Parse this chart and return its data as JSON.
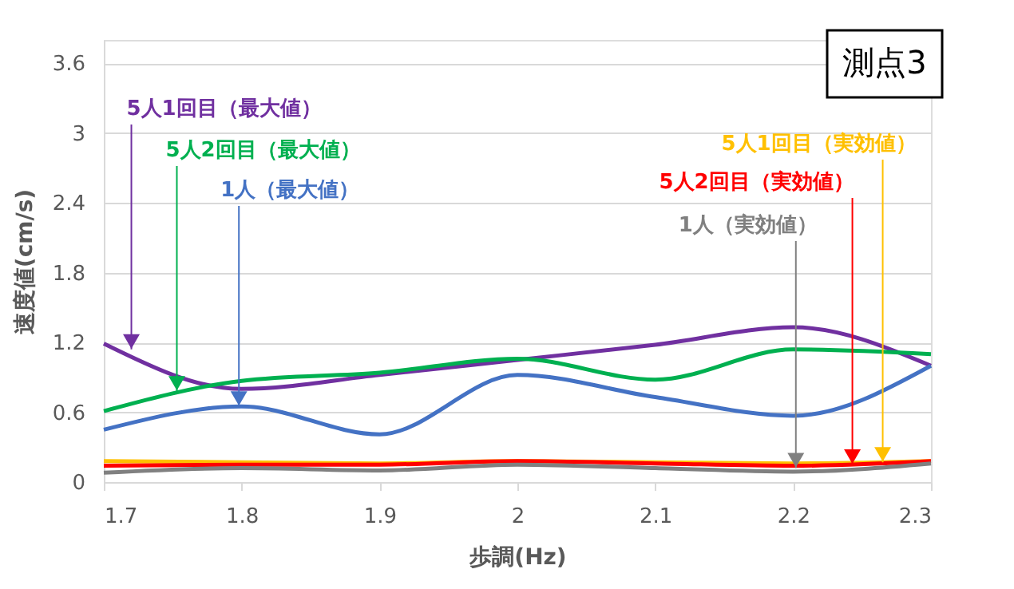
{
  "chart_data": {
    "type": "line",
    "title": "測点3",
    "xlabel": "歩調(Hz)",
    "ylabel": "速度値(cm/s)",
    "x": [
      1.7,
      1.8,
      1.9,
      2.0,
      2.1,
      2.2,
      2.3
    ],
    "series": [
      {
        "color": "#7030a0",
        "values": [
          1.19,
          0.8,
          0.92,
          1.05,
          1.18,
          1.33,
          1.0
        ]
      },
      {
        "color": "#00b050",
        "values": [
          0.61,
          0.87,
          0.94,
          1.06,
          0.88,
          1.14,
          1.1
        ]
      },
      {
        "color": "#4472c4",
        "values": [
          0.45,
          0.65,
          0.41,
          0.92,
          0.73,
          0.57,
          1.0
        ]
      },
      {
        "color": "#ffc000",
        "values": [
          0.18,
          0.17,
          0.16,
          0.18,
          0.17,
          0.16,
          0.18
        ]
      },
      {
        "color": "#ff0000",
        "values": [
          0.14,
          0.15,
          0.15,
          0.18,
          0.16,
          0.14,
          0.18
        ]
      },
      {
        "color": "#808080",
        "values": [
          0.08,
          0.12,
          0.1,
          0.15,
          0.12,
          0.09,
          0.16
        ]
      }
    ],
    "annotations": [
      {
        "text": "5人1回目（最大値）",
        "x": 1.72,
        "y": 1.14
      },
      {
        "text": "5人2回目（最大値）",
        "x": 1.753,
        "y": 0.78
      },
      {
        "text": "1人（最大値）",
        "x": 1.798,
        "y": 0.65
      },
      {
        "text": "5人1回目（実効値）",
        "x": 2.265,
        "y": 0.17
      },
      {
        "text": "5人2回目（実効値）",
        "x": 2.243,
        "y": 0.15
      },
      {
        "text": "1人（実効値）",
        "x": 2.202,
        "y": 0.12
      }
    ],
    "xlim": [
      1.7,
      2.3
    ],
    "xticks": [
      1.7,
      1.8,
      1.9,
      2.0,
      2.1,
      2.2,
      2.3
    ],
    "ylim": [
      0,
      3.8
    ],
    "yticks": [
      0,
      0.6,
      1.2,
      1.8,
      2.4,
      3.0,
      3.6
    ],
    "grid": "y",
    "marker": "none",
    "line_style": "solid"
  }
}
